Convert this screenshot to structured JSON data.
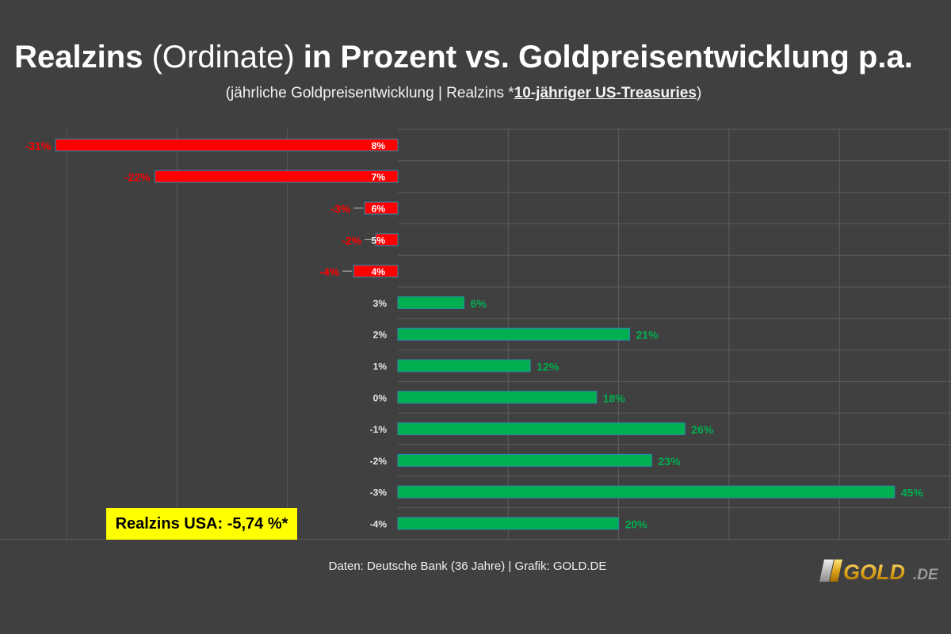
{
  "header": {
    "title_part1": "Realzins",
    "title_part2": "(Ordinate)",
    "title_part3": "in Prozent vs. Goldpreisentwicklung p.a.",
    "subtitle_part1": "(jährliche Goldpreisentwicklung | Realzins *",
    "subtitle_part2": "10-jähriger US-Treasuries",
    "subtitle_part3": ")"
  },
  "chart_data": {
    "type": "bar",
    "orientation": "horizontal",
    "title": "Realzins (Ordinate) in Prozent vs. Goldpreisentwicklung p.a.",
    "subtitle": "(jährliche Goldpreisentwicklung | Realzins *10-jähriger US-Treasuries)",
    "categories": [
      "8%",
      "7%",
      "6%",
      "5%",
      "4%",
      "3%",
      "2%",
      "1%",
      "0%",
      "-1%",
      "-2%",
      "-3%",
      "-4%"
    ],
    "values": [
      -31,
      -22,
      -3,
      -2,
      -4,
      6,
      21,
      12,
      18,
      26,
      23,
      45,
      20
    ],
    "value_labels": [
      "-31%",
      "-22%",
      "-3%",
      "-2%",
      "-4%",
      "6%",
      "21%",
      "12%",
      "18%",
      "26%",
      "23%",
      "45%",
      "20%"
    ],
    "xlim": [
      -31,
      50
    ],
    "grid": true,
    "colors": {
      "negative": "#ff0000",
      "positive": "#00b050",
      "negative_label": "#ff0000",
      "positive_label": "#00b050"
    }
  },
  "annotation": {
    "text": "Realzins USA: -5,74 %*",
    "background": "#ffff00"
  },
  "footer": {
    "text": "Daten: Deutsche Bank (36 Jahre) | Grafik: GOLD.DE"
  },
  "logo": {
    "text_main": "GOLD",
    "text_suffix": ".DE"
  }
}
